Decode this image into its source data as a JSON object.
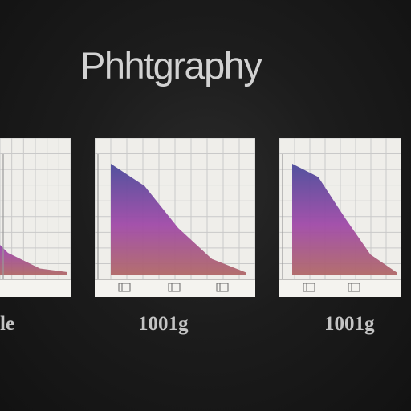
{
  "title": "Phhtgraphy",
  "panels": [
    {
      "id": "left",
      "label": "le",
      "curve": [
        [
          0,
          0.55
        ],
        [
          0.35,
          0.82
        ],
        [
          0.7,
          0.95
        ],
        [
          1,
          0.98
        ]
      ]
    },
    {
      "id": "middle",
      "label": "1001g",
      "curve": [
        [
          0,
          0.0
        ],
        [
          0.25,
          0.2
        ],
        [
          0.5,
          0.58
        ],
        [
          0.75,
          0.86
        ],
        [
          1,
          0.98
        ]
      ]
    },
    {
      "id": "right",
      "label": "1001g",
      "curve": [
        [
          0,
          0.0
        ],
        [
          0.25,
          0.12
        ],
        [
          0.5,
          0.48
        ],
        [
          0.75,
          0.82
        ],
        [
          1,
          0.98
        ]
      ]
    }
  ],
  "colors": {
    "background": "#1a1a1a",
    "panel": "#efeeea",
    "grid": "#c9c9c9",
    "gradient_top": "#4a4a9a",
    "gradient_mid": "#a04aa8",
    "gradient_bottom": "#b06868",
    "text": "#c8c8c8"
  }
}
